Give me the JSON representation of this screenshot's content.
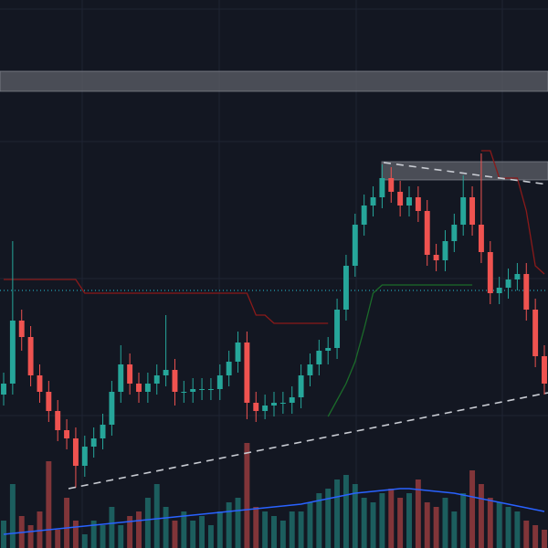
{
  "chart_data": {
    "type": "candlestick",
    "up_color": "#26a69a",
    "down_color": "#ef5350",
    "ylim": [
      0,
      100
    ],
    "open": [
      28,
      30,
      41.5,
      38.5,
      31.5,
      28.5,
      25,
      21.5,
      20,
      15,
      18.5,
      20,
      22.5,
      28.5,
      33.5,
      30,
      28.5,
      30,
      31.5,
      32.5,
      28.5,
      28.5,
      29,
      29,
      29,
      31.5,
      34,
      37.5,
      26.5,
      25,
      26,
      26.5,
      26.5,
      27.5,
      31.5,
      33.5,
      36,
      36.5,
      43.5,
      51.5,
      59,
      62.5,
      64,
      67.5,
      65,
      62.5,
      64,
      61.5,
      53.5,
      52.5,
      56,
      59,
      64,
      59,
      54,
      46.5,
      47.5,
      49,
      50,
      43.5,
      35
    ],
    "high": [
      32,
      56,
      43.5,
      40.5,
      33.5,
      30.5,
      27,
      23.5,
      22,
      20.5,
      22,
      24.5,
      30.5,
      37,
      35.5,
      32,
      32,
      33.5,
      42.5,
      34.5,
      30.5,
      31,
      31,
      31,
      33.5,
      36,
      39.5,
      39.5,
      28.5,
      28,
      28.5,
      28.5,
      29.5,
      33.5,
      35.5,
      38,
      38.5,
      45.5,
      53.5,
      61,
      64.5,
      66,
      70,
      69.5,
      67,
      66,
      66,
      63.5,
      55.5,
      58,
      61,
      68,
      66,
      72,
      56,
      49.5,
      51,
      52,
      52,
      45.5,
      37
    ],
    "low": [
      26,
      28,
      36,
      29.5,
      26.5,
      23,
      19.5,
      18,
      11,
      13,
      16.5,
      18,
      20.5,
      26.5,
      28,
      26.5,
      26.5,
      28,
      29.5,
      26,
      26.5,
      26.5,
      27,
      27,
      27,
      29.5,
      32,
      23.5,
      23,
      23.5,
      24,
      24.5,
      24.5,
      25.5,
      29.5,
      31.5,
      33.5,
      34.5,
      41.5,
      49.5,
      57,
      60.5,
      62,
      63,
      60.5,
      60.5,
      59.5,
      51.5,
      50.5,
      50.5,
      54,
      57,
      57,
      52,
      44.5,
      44.5,
      45.5,
      47,
      41.5,
      33,
      28
    ],
    "close": [
      30,
      41.5,
      38.5,
      31.5,
      28.5,
      25,
      21.5,
      20,
      15,
      18.5,
      20,
      22.5,
      28.5,
      33.5,
      30,
      28.5,
      30,
      31.5,
      32.5,
      28.5,
      28.5,
      29,
      29,
      29,
      31.5,
      34,
      37.5,
      26.5,
      25,
      26,
      26.5,
      26.5,
      27.5,
      31.5,
      33.5,
      36,
      36.5,
      43.5,
      51.5,
      59,
      62.5,
      64,
      67.5,
      65,
      62.5,
      64,
      61.5,
      53.5,
      52.5,
      56,
      59,
      64,
      59,
      54,
      46.5,
      47.5,
      49,
      50,
      43.5,
      35,
      30
    ],
    "volume": {
      "vlim": [
        0,
        100
      ],
      "values": [
        30,
        70,
        35,
        25,
        40,
        95,
        20,
        55,
        30,
        15,
        30,
        25,
        45,
        25,
        35,
        40,
        55,
        70,
        45,
        30,
        40,
        30,
        35,
        25,
        40,
        50,
        55,
        115,
        45,
        40,
        35,
        30,
        40,
        40,
        50,
        60,
        65,
        75,
        80,
        70,
        55,
        50,
        60,
        65,
        55,
        60,
        75,
        50,
        45,
        55,
        40,
        60,
        85,
        70,
        55,
        50,
        45,
        40,
        30,
        25,
        20
      ],
      "ma_color": "#2962ff",
      "ma": [
        15,
        16,
        17,
        18,
        19,
        20,
        21,
        22,
        23,
        24,
        25,
        26,
        27,
        28,
        29,
        30,
        31,
        32,
        33,
        34,
        35,
        36,
        37,
        38,
        39,
        40,
        41,
        42,
        43,
        44,
        45,
        46,
        47,
        48,
        50,
        52,
        54,
        56,
        58,
        60,
        61,
        62,
        63,
        64,
        65,
        65,
        64,
        63,
        62,
        61,
        60,
        58,
        56,
        54,
        52,
        50,
        48,
        46,
        44,
        42,
        40
      ]
    },
    "indicators": [
      {
        "color": "#8b1a1a",
        "values": [
          49,
          49,
          49,
          49,
          49,
          49,
          49,
          49,
          49,
          46.5,
          46.5,
          46.5,
          46.5,
          46.5,
          46.5,
          46.5,
          46.5,
          46.5,
          46.5,
          46.5,
          46.5,
          46.5,
          46.5,
          46.5,
          46.5,
          46.5,
          46.5,
          46.5,
          42.5,
          42.5,
          41,
          41,
          41,
          41,
          41,
          41,
          41,
          null,
          null,
          null,
          null,
          null,
          null,
          null,
          null,
          null,
          null,
          null,
          null,
          null,
          null,
          null,
          null,
          72.5,
          72.5,
          67.5,
          67.5,
          67.5,
          61.5,
          51.5,
          50
        ]
      },
      {
        "color": "#1b6b2a",
        "values": [
          null,
          null,
          null,
          null,
          null,
          null,
          null,
          null,
          null,
          null,
          null,
          null,
          null,
          null,
          null,
          null,
          null,
          null,
          null,
          null,
          null,
          null,
          null,
          null,
          null,
          null,
          null,
          null,
          null,
          null,
          null,
          null,
          null,
          null,
          null,
          null,
          24,
          27,
          30,
          34,
          40,
          46.5,
          48,
          48,
          48,
          48,
          48,
          48,
          48,
          48,
          48,
          48,
          48,
          null,
          null,
          null,
          null,
          null,
          null,
          null,
          null
        ]
      }
    ],
    "level": {
      "value": 47,
      "color": "#26c6da"
    }
  }
}
